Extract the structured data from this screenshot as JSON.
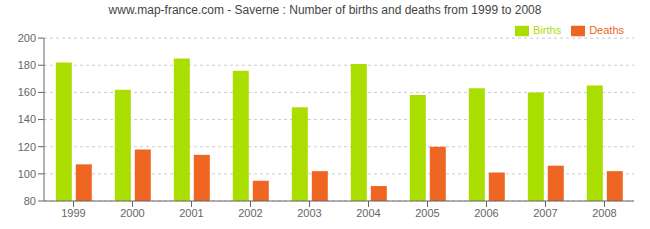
{
  "chart_data": {
    "type": "bar",
    "title": "www.map-france.com - Saverne : Number of births and deaths from 1999 to 2008",
    "categories": [
      "1999",
      "2000",
      "2001",
      "2002",
      "2003",
      "2004",
      "2005",
      "2006",
      "2007",
      "2008"
    ],
    "series": [
      {
        "name": "Births",
        "color": "#aadd00",
        "values": [
          182,
          162,
          185,
          176,
          149,
          181,
          158,
          163,
          160,
          165
        ]
      },
      {
        "name": "Deaths",
        "color": "#ee6622",
        "values": [
          107,
          118,
          114,
          95,
          102,
          91,
          120,
          101,
          106,
          102
        ]
      }
    ],
    "ylim": [
      80,
      200
    ],
    "yticks": [
      80,
      100,
      120,
      140,
      160,
      180,
      200
    ],
    "grid": true,
    "legend": "upper right"
  }
}
